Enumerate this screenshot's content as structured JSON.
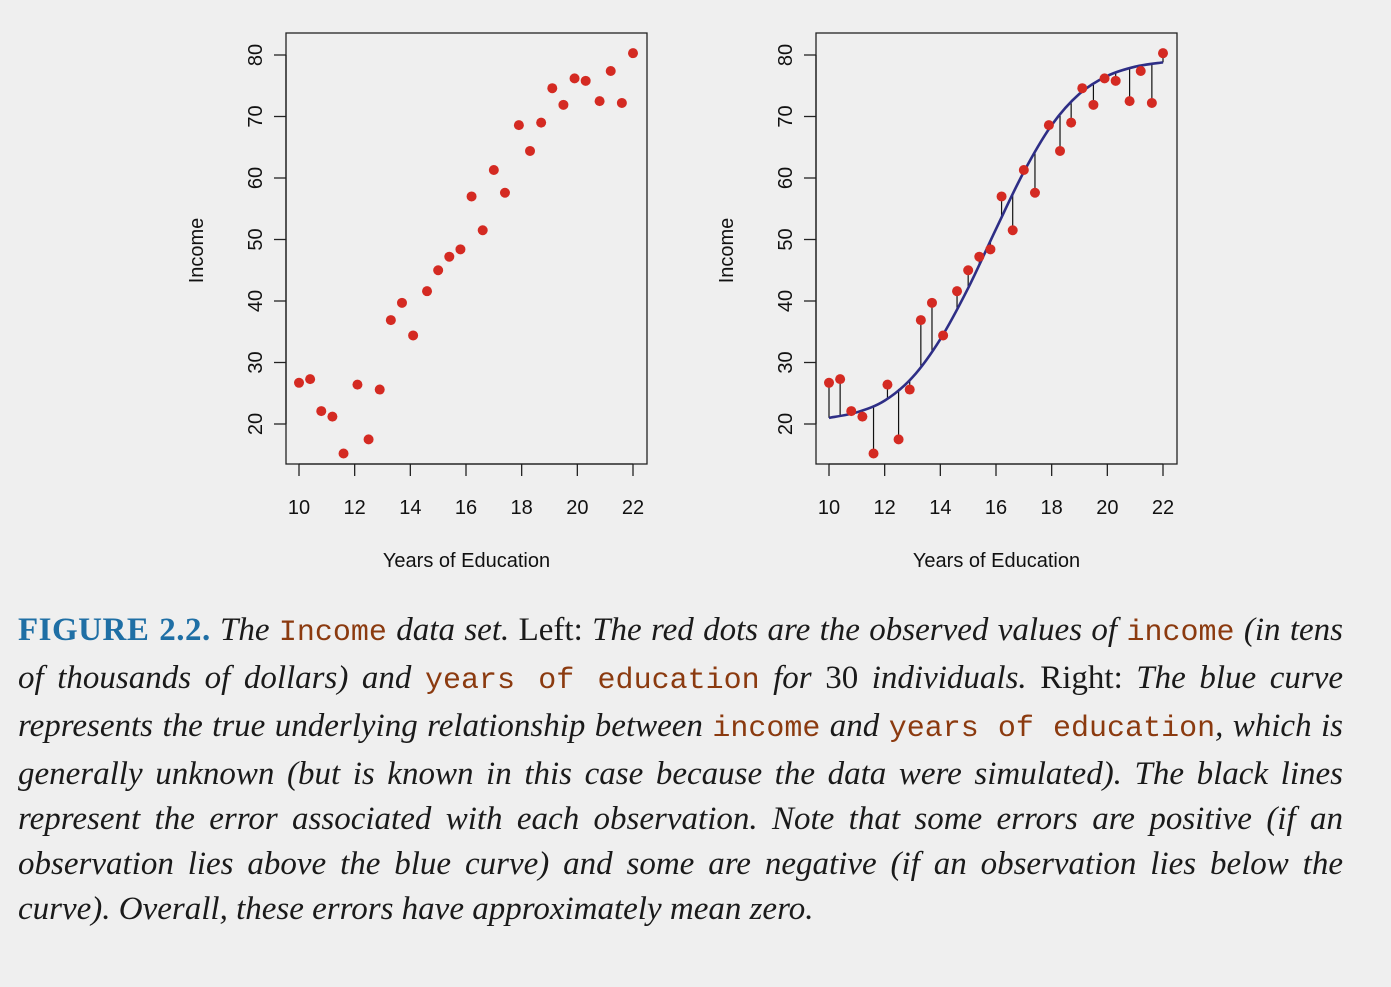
{
  "chart_data": [
    {
      "type": "scatter",
      "panel": "left",
      "xlabel": "Years of Education",
      "ylabel": "Income",
      "xlim": [
        10,
        22
      ],
      "ylim": [
        15,
        80
      ],
      "xticks": [
        "10",
        "12",
        "14",
        "16",
        "18",
        "20",
        "22"
      ],
      "yticks": [
        "20",
        "30",
        "40",
        "50",
        "60",
        "70",
        "80"
      ],
      "points": [
        {
          "x": 10.0,
          "y": 26.7
        },
        {
          "x": 10.4,
          "y": 27.3
        },
        {
          "x": 10.8,
          "y": 22.1
        },
        {
          "x": 11.2,
          "y": 21.2
        },
        {
          "x": 11.6,
          "y": 15.2
        },
        {
          "x": 12.1,
          "y": 26.4
        },
        {
          "x": 12.5,
          "y": 17.5
        },
        {
          "x": 12.9,
          "y": 25.6
        },
        {
          "x": 13.3,
          "y": 36.9
        },
        {
          "x": 13.7,
          "y": 39.7
        },
        {
          "x": 14.1,
          "y": 34.4
        },
        {
          "x": 14.6,
          "y": 41.6
        },
        {
          "x": 15.0,
          "y": 45.0
        },
        {
          "x": 15.4,
          "y": 47.2
        },
        {
          "x": 15.8,
          "y": 48.4
        },
        {
          "x": 16.2,
          "y": 57.0
        },
        {
          "x": 16.6,
          "y": 51.5
        },
        {
          "x": 17.0,
          "y": 61.3
        },
        {
          "x": 17.4,
          "y": 57.6
        },
        {
          "x": 17.9,
          "y": 68.6
        },
        {
          "x": 18.3,
          "y": 64.4
        },
        {
          "x": 18.7,
          "y": 69.0
        },
        {
          "x": 19.1,
          "y": 74.6
        },
        {
          "x": 19.5,
          "y": 71.9
        },
        {
          "x": 19.9,
          "y": 76.2
        },
        {
          "x": 20.3,
          "y": 75.8
        },
        {
          "x": 20.8,
          "y": 72.5
        },
        {
          "x": 21.2,
          "y": 77.4
        },
        {
          "x": 21.6,
          "y": 72.2
        },
        {
          "x": 22.0,
          "y": 80.3
        }
      ],
      "point_color": "#d42a22"
    },
    {
      "type": "scatter",
      "panel": "right",
      "xlabel": "Years of Education",
      "ylabel": "Income",
      "xlim": [
        10,
        22
      ],
      "ylim": [
        15,
        80
      ],
      "xticks": [
        "10",
        "12",
        "14",
        "16",
        "18",
        "20",
        "22"
      ],
      "yticks": [
        "20",
        "30",
        "40",
        "50",
        "60",
        "70",
        "80"
      ],
      "points": [
        {
          "x": 10.0,
          "y": 26.7
        },
        {
          "x": 10.4,
          "y": 27.3
        },
        {
          "x": 10.8,
          "y": 22.1
        },
        {
          "x": 11.2,
          "y": 21.2
        },
        {
          "x": 11.6,
          "y": 15.2
        },
        {
          "x": 12.1,
          "y": 26.4
        },
        {
          "x": 12.5,
          "y": 17.5
        },
        {
          "x": 12.9,
          "y": 25.6
        },
        {
          "x": 13.3,
          "y": 36.9
        },
        {
          "x": 13.7,
          "y": 39.7
        },
        {
          "x": 14.1,
          "y": 34.4
        },
        {
          "x": 14.6,
          "y": 41.6
        },
        {
          "x": 15.0,
          "y": 45.0
        },
        {
          "x": 15.4,
          "y": 47.2
        },
        {
          "x": 15.8,
          "y": 48.4
        },
        {
          "x": 16.2,
          "y": 57.0
        },
        {
          "x": 16.6,
          "y": 51.5
        },
        {
          "x": 17.0,
          "y": 61.3
        },
        {
          "x": 17.4,
          "y": 57.6
        },
        {
          "x": 17.9,
          "y": 68.6
        },
        {
          "x": 18.3,
          "y": 64.4
        },
        {
          "x": 18.7,
          "y": 69.0
        },
        {
          "x": 19.1,
          "y": 74.6
        },
        {
          "x": 19.5,
          "y": 71.9
        },
        {
          "x": 19.9,
          "y": 76.2
        },
        {
          "x": 20.3,
          "y": 75.8
        },
        {
          "x": 20.8,
          "y": 72.5
        },
        {
          "x": 21.2,
          "y": 77.4
        },
        {
          "x": 21.6,
          "y": 72.2
        },
        {
          "x": 22.0,
          "y": 80.3
        }
      ],
      "true_curve": [
        {
          "x": 10.0,
          "y": 21.0
        },
        {
          "x": 11.0,
          "y": 21.9
        },
        {
          "x": 12.0,
          "y": 23.8
        },
        {
          "x": 13.0,
          "y": 27.6
        },
        {
          "x": 14.0,
          "y": 33.8
        },
        {
          "x": 15.0,
          "y": 42.1
        },
        {
          "x": 16.0,
          "y": 51.7
        },
        {
          "x": 17.0,
          "y": 61.0
        },
        {
          "x": 18.0,
          "y": 68.6
        },
        {
          "x": 19.0,
          "y": 73.7
        },
        {
          "x": 20.0,
          "y": 76.6
        },
        {
          "x": 21.0,
          "y": 78.1
        },
        {
          "x": 22.0,
          "y": 78.8
        }
      ],
      "point_color": "#d42a22",
      "curve_color": "#2e2e86",
      "error_line_color": "#111111"
    }
  ],
  "caption": {
    "figure_label": "FIGURE 2.2.",
    "s1": " The ",
    "c1": "Income",
    "s2": " data set.",
    "r1": " Left: ",
    "s3": "The red dots are the observed values of ",
    "c2": "income",
    "s4": " (in tens of thousands of dollars) and ",
    "c3": "years of education",
    "s5": " for ",
    "r2": "30",
    "s6": " individuals.",
    "r3": " Right: ",
    "s7": "The blue curve represents the true underlying relationship between ",
    "c4": "income",
    "s8": " and ",
    "c5": "years of education",
    "s9": ", which is generally unknown (but is known in this case because the data were simulated). The black lines represent the error associated with each observation. Note that some errors are positive (if an observation lies above the blue curve) and some are negative (if an observation lies below the curve). Overall, these errors have approximately mean zero."
  }
}
